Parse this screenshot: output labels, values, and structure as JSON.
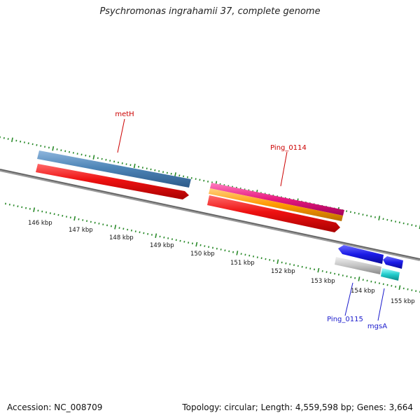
{
  "title": "Psychromonas ingrahamii 37, complete genome",
  "footer": {
    "accession": "Accession: NC_008709",
    "summary": "Topology: circular; Length: 4,559,598 bp; Genes: 3,664"
  },
  "axis": {
    "tick_labels": [
      "146 kbp",
      "147 kbp",
      "148 kbp",
      "149 kbp",
      "150 kbp",
      "151 kbp",
      "152 kbp",
      "153 kbp",
      "154 kbp",
      "155 kbp"
    ]
  },
  "genes": {
    "upper_strand": [
      {
        "name": "metH",
        "color": "#4f86b8"
      },
      {
        "name": "Ping_0114",
        "color": "#e6197e"
      }
    ],
    "lower_strand": [
      {
        "name": "Ping_0115",
        "color": "#1a1ae6"
      },
      {
        "name": "mgsA",
        "color": "#1a1ae6"
      }
    ]
  },
  "colors": {
    "backbone": "#7a7a7a",
    "ticks": "#2a8a2a",
    "cds": "#ee1111",
    "trna_like": "#ff9900",
    "gray_feature": "#bdbdbd",
    "cyan_feature": "#22cccc",
    "upper_label": "#cc0000",
    "lower_label": "#1a1acc"
  }
}
